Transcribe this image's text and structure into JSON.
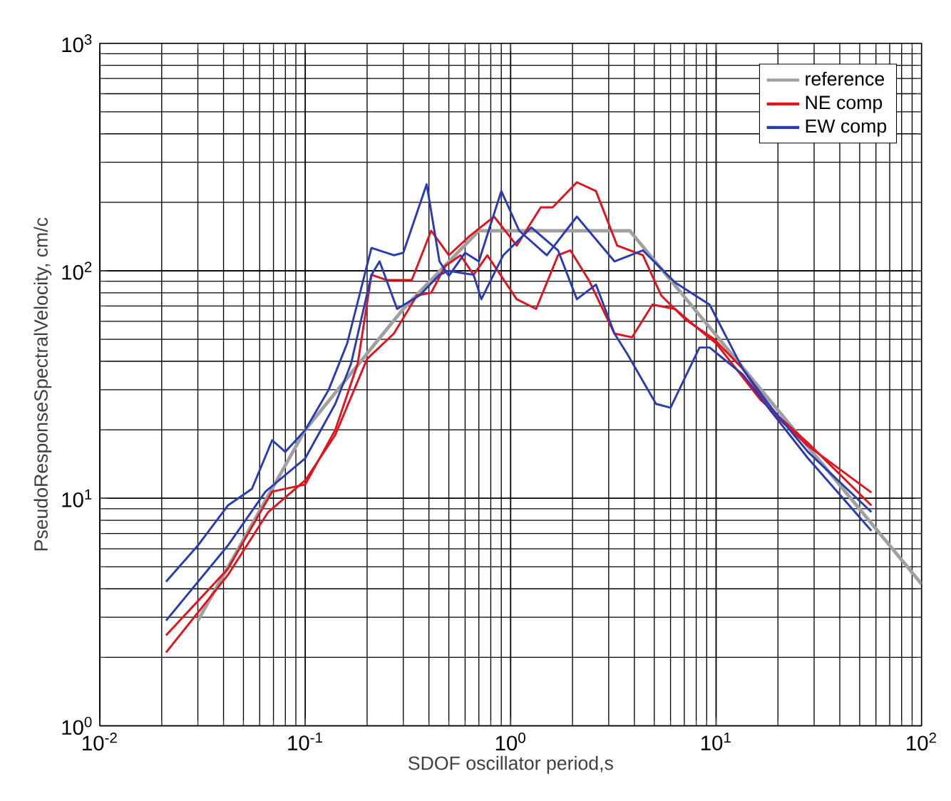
{
  "chart_data": {
    "type": "line",
    "xlabel": "SDOF oscillator period,s",
    "ylabel": "PseudoResponseSpectralVelocity, cm/c",
    "log": "xy",
    "grid": true,
    "legend": "top right",
    "marker": "none",
    "line_style": "solid",
    "xlim": [
      0.01,
      100
    ],
    "ylim": [
      1,
      1000
    ],
    "xticks": [
      {
        "value": 0.01,
        "label": "10$^{-2}$"
      },
      {
        "value": 0.1,
        "label": "10$^{-1}$"
      },
      {
        "value": 1,
        "label": "10$^{0}$"
      },
      {
        "value": 10,
        "label": "10$^{1}$"
      },
      {
        "value": 100,
        "label": "10$^{2}$"
      }
    ],
    "yticks": [
      {
        "value": 1,
        "label": "10$^{0}$"
      },
      {
        "value": 10,
        "label": "10$^{1}$"
      },
      {
        "value": 100,
        "label": "10$^{2}$"
      },
      {
        "value": 1000,
        "label": "10$^{3}$"
      }
    ],
    "series": [
      {
        "name": "reference",
        "color": "#a0a0a0",
        "x": [
          0.03,
          0.1,
          0.3,
          0.7,
          3.8,
          100
        ],
        "values": [
          2.9,
          20,
          68,
          150,
          150,
          4.2
        ]
      },
      {
        "name": "NE comp",
        "color": "#e0141e",
        "x": [
          0.021,
          0.042,
          0.069,
          0.1,
          0.14,
          0.18,
          0.21,
          0.25,
          0.33,
          0.41,
          0.5,
          0.63,
          0.83,
          1.07,
          1.4,
          1.6,
          2.1,
          2.6,
          3.3,
          4.4,
          5.4,
          7.1,
          9.8,
          13.5,
          18.6,
          28,
          57
        ],
        "values": [
          2.5,
          4.9,
          10.7,
          11.5,
          20,
          39,
          96,
          91,
          91,
          150,
          117,
          142,
          173,
          129,
          190,
          190,
          245,
          224,
          129,
          117,
          78,
          61,
          50,
          37,
          24,
          17,
          10.6
        ]
      },
      {
        "color": "#e0141e",
        "x": [
          0.021,
          0.042,
          0.066,
          0.1,
          0.14,
          0.2,
          0.27,
          0.35,
          0.41,
          0.48,
          0.57,
          0.66,
          0.77,
          1.07,
          1.33,
          1.7,
          1.95,
          2.4,
          3.2,
          3.9,
          4.9,
          6.3,
          8.3,
          10,
          16.5,
          28,
          57
        ],
        "values": [
          2.1,
          4.6,
          8.7,
          12,
          19,
          41,
          53,
          78,
          80,
          105,
          117,
          96,
          117,
          75,
          68,
          117,
          123,
          91,
          53,
          51,
          71,
          68,
          55,
          48,
          27,
          17.5,
          9.3
        ]
      },
      {
        "name": "EW comp",
        "color": "#2a3cb4",
        "x": [
          0.021,
          0.03,
          0.042,
          0.055,
          0.069,
          0.08,
          0.1,
          0.13,
          0.16,
          0.21,
          0.27,
          0.3,
          0.39,
          0.45,
          0.5,
          0.6,
          0.7,
          0.9,
          1.1,
          1.5,
          2.1,
          3.2,
          4.4,
          6.3,
          9.3,
          13.5,
          18.6,
          28,
          57
        ],
        "values": [
          4.3,
          6.2,
          9.3,
          11,
          18,
          16,
          20,
          30,
          48,
          126,
          117,
          120,
          240,
          110,
          95,
          120,
          110,
          224,
          150,
          117,
          173,
          110,
          123,
          89,
          71,
          37,
          25,
          16,
          8.7
        ]
      },
      {
        "color": "#2a3cb4",
        "x": [
          0.021,
          0.042,
          0.064,
          0.1,
          0.14,
          0.167,
          0.21,
          0.23,
          0.28,
          0.36,
          0.45,
          0.5,
          0.57,
          0.66,
          0.72,
          0.92,
          1.26,
          1.7,
          2.1,
          2.6,
          3.2,
          3.7,
          5.1,
          6.0,
          8.3,
          9.3,
          13.5,
          18.6,
          28,
          57
        ],
        "values": [
          2.9,
          6.2,
          10.7,
          15,
          26,
          39,
          96,
          110,
          68,
          78,
          96,
          100,
          98,
          96,
          75,
          117,
          155,
          123,
          75,
          87,
          53,
          43,
          26,
          25,
          46,
          46,
          35,
          24,
          15,
          7.2
        ]
      }
    ]
  }
}
